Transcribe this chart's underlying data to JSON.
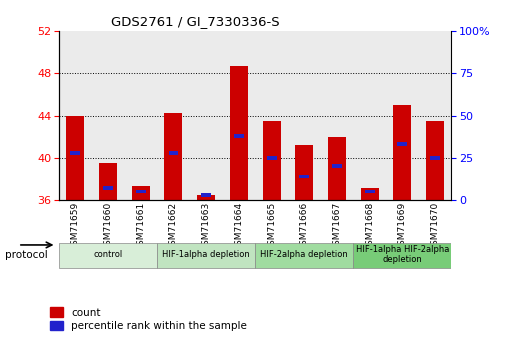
{
  "title": "GDS2761 / GI_7330336-S",
  "samples": [
    "GSM71659",
    "GSM71660",
    "GSM71661",
    "GSM71662",
    "GSM71663",
    "GSM71664",
    "GSM71665",
    "GSM71666",
    "GSM71667",
    "GSM71668",
    "GSM71669",
    "GSM71670"
  ],
  "count_values": [
    44.0,
    39.5,
    37.3,
    44.2,
    36.5,
    48.7,
    43.5,
    41.2,
    42.0,
    37.1,
    45.0,
    43.5
  ],
  "percentile_values": [
    28.0,
    7.0,
    5.0,
    28.0,
    3.0,
    38.0,
    25.0,
    14.0,
    20.0,
    5.0,
    33.0,
    25.0
  ],
  "bar_bottom": 36.0,
  "ylim_left": [
    36,
    52
  ],
  "ylim_right": [
    0,
    100
  ],
  "yticks_left": [
    36,
    40,
    44,
    48,
    52
  ],
  "yticks_right": [
    0,
    25,
    50,
    75,
    100
  ],
  "bar_color": "#cc0000",
  "blue_color": "#2222cc",
  "plot_bg": "#ffffff",
  "fig_bg": "#ffffff",
  "groups": [
    {
      "label": "control",
      "start": 0,
      "end": 3,
      "color": "#d8eed8"
    },
    {
      "label": "HIF-1alpha depletion",
      "start": 3,
      "end": 6,
      "color": "#c0e4c0"
    },
    {
      "label": "HIF-2alpha depletion",
      "start": 6,
      "end": 9,
      "color": "#a0dca0"
    },
    {
      "label": "HIF-1alpha HIF-2alpha\ndepletion",
      "start": 9,
      "end": 12,
      "color": "#78cc78"
    }
  ],
  "legend_count_label": "count",
  "legend_percentile_label": "percentile rank within the sample",
  "protocol_label": "protocol",
  "bar_width": 0.55
}
